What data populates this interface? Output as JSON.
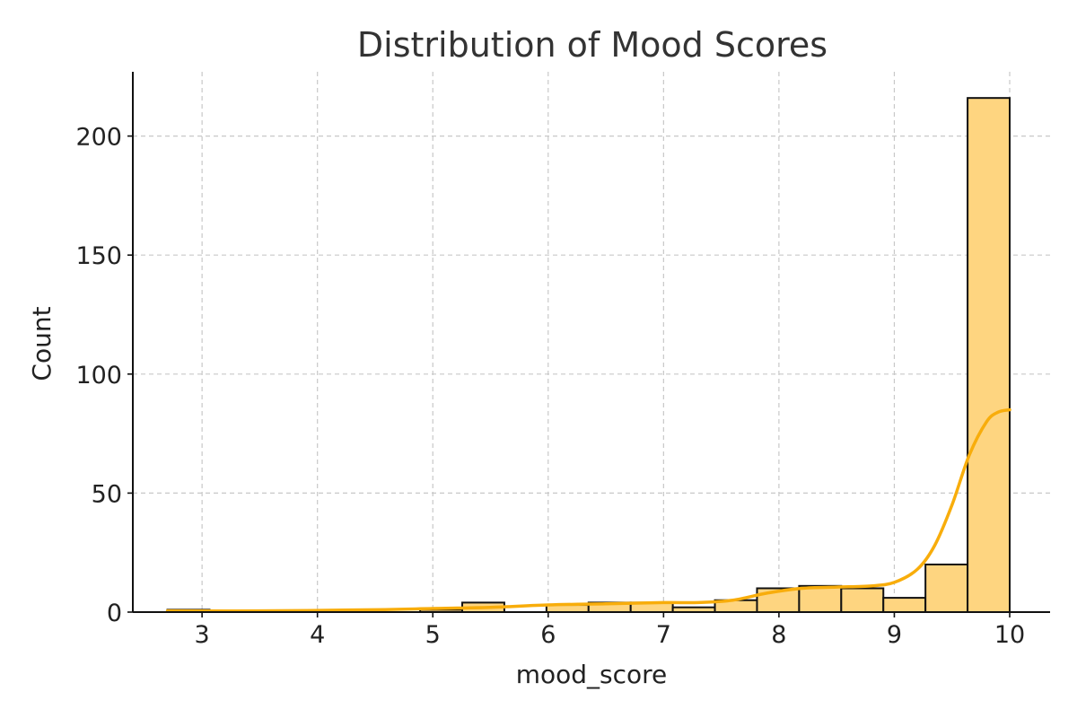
{
  "chart_data": {
    "type": "bar",
    "title": "Distribution of Mood Scores",
    "xlabel": "mood_score",
    "ylabel": "Count",
    "xlim": [
      2.4,
      10.35
    ],
    "ylim": [
      0,
      227
    ],
    "xticks": [
      3,
      4,
      5,
      6,
      7,
      8,
      9,
      10
    ],
    "yticks": [
      0,
      50,
      100,
      150,
      200
    ],
    "grid": true,
    "bin_edges": [
      2.7,
      3.065,
      3.43,
      3.795,
      4.16,
      4.525,
      4.89,
      5.255,
      5.62,
      5.985,
      6.35,
      6.715,
      7.08,
      7.445,
      7.81,
      8.175,
      8.54,
      8.905,
      9.27,
      9.635,
      10.0
    ],
    "counts": [
      1,
      0,
      0,
      0,
      0,
      0,
      1,
      4,
      0,
      3,
      4,
      4,
      2,
      5,
      10,
      11,
      10,
      6,
      20,
      216
    ],
    "kde": {
      "x": [
        2.7,
        3.5,
        4.5,
        5.0,
        5.5,
        6.0,
        6.5,
        7.0,
        7.3,
        7.6,
        7.9,
        8.2,
        8.5,
        8.8,
        9.0,
        9.2,
        9.35,
        9.5,
        9.65,
        9.8,
        9.9,
        10.0
      ],
      "y": [
        0.5,
        0.5,
        1.0,
        1.5,
        2.0,
        3.0,
        3.5,
        4.0,
        4.0,
        5.0,
        8.0,
        10.0,
        10.5,
        11.0,
        12.5,
        18.0,
        28.0,
        45.0,
        66.0,
        80.0,
        84.0,
        85.0
      ]
    },
    "colors": {
      "bar_fill": "#FED580",
      "bar_edge": "#111111",
      "kde_line": "#F8AD0B"
    }
  }
}
